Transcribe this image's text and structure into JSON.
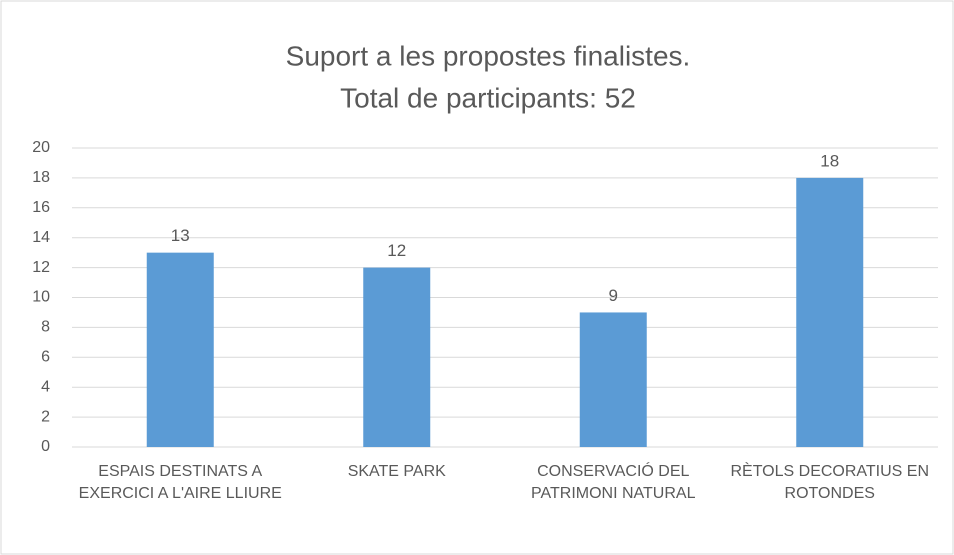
{
  "chart_data": {
    "type": "bar",
    "title": "Suport a les propostes finalistes.",
    "subtitle": "Total de participants: 52",
    "categories": [
      "ESPAIS DESTINATS A EXERCICI A L'AIRE LLIURE",
      "SKATE PARK",
      "CONSERVACIÓ DEL PATRIMONI NATURAL",
      "RÈTOLS DECORATIUS EN ROTONDES"
    ],
    "values": [
      13,
      12,
      9,
      18
    ],
    "color": "#5b9bd5",
    "ylim": [
      0,
      20
    ],
    "yticks": [
      0,
      2,
      4,
      6,
      8,
      10,
      12,
      14,
      16,
      18,
      20
    ],
    "grid": true
  }
}
